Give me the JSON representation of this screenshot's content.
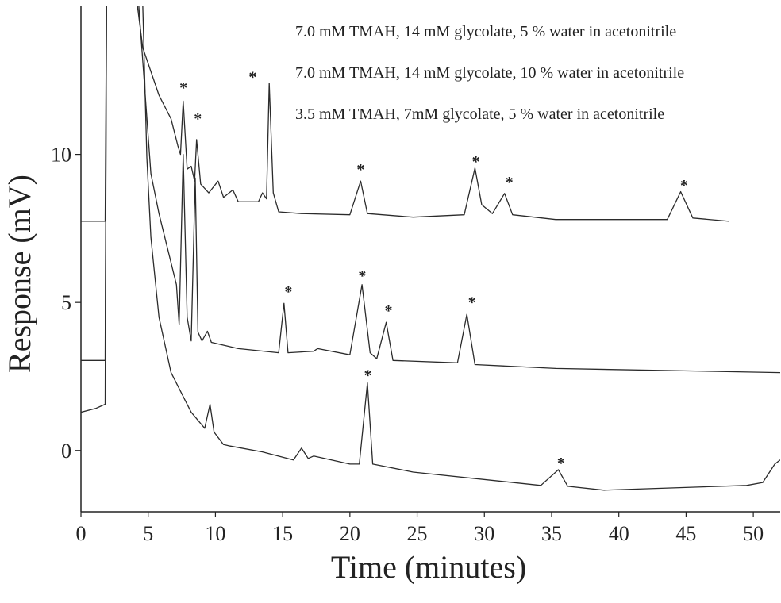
{
  "chart_data": {
    "type": "line",
    "xlabel": "Time (minutes)",
    "ylabel": "Response (mV)",
    "xlim": [
      0,
      52
    ],
    "ylim": [
      -2.07,
      15
    ],
    "xticks": [
      0,
      5,
      10,
      15,
      20,
      25,
      30,
      35,
      40,
      45,
      50
    ],
    "yticks": [
      0,
      5,
      10
    ],
    "legend": "upper right",
    "series": [
      {
        "name": "7.0 mM TMAH, 14 mM glycolate, 5 % water in acetonitrile",
        "color": "#2b2b2b",
        "x": [
          0,
          1.8,
          1.9,
          3.0,
          4.2,
          4.6,
          5.8,
          6.7,
          7.2,
          7.4,
          7.6,
          7.9,
          8.2,
          8.45,
          8.6,
          8.9,
          9.5,
          10.2,
          10.6,
          11.3,
          11.7,
          13.2,
          13.5,
          13.8,
          14.0,
          14.3,
          14.7,
          16.4,
          20.0,
          20.8,
          21.3,
          24.7,
          28.5,
          29.3,
          29.8,
          30.6,
          31.5,
          32.1,
          35.3,
          43.6,
          44.6,
          45.5,
          48.2
        ],
        "values": [
          7.74,
          7.74,
          15,
          null,
          15,
          13.6,
          12.0,
          11.2,
          10.3,
          10.0,
          11.8,
          9.5,
          9.6,
          9.1,
          10.5,
          9.0,
          8.7,
          9.1,
          8.55,
          8.8,
          8.4,
          8.4,
          8.7,
          8.5,
          12.4,
          8.7,
          8.06,
          8.0,
          7.96,
          9.1,
          8.0,
          7.88,
          7.96,
          9.54,
          8.3,
          8.0,
          8.68,
          7.96,
          7.8,
          7.8,
          8.74,
          7.85,
          7.74
        ]
      },
      {
        "name": "7.0 mM TMAH, 14 mM glycolate, 10 % water in acetonitrile",
        "color": "#2b2b2b",
        "x": [
          0,
          1.8,
          1.9,
          3.0,
          4.3,
          5.2,
          5.8,
          6.4,
          7.1,
          7.3,
          7.6,
          7.9,
          8.2,
          8.5,
          8.7,
          9.0,
          9.4,
          9.7,
          11.7,
          14.7,
          15.1,
          15.4,
          17.3,
          17.6,
          20.0,
          20.9,
          21.5,
          22.0,
          22.7,
          23.2,
          28.0,
          28.7,
          29.3,
          35.3,
          52
        ],
        "values": [
          3.04,
          3.04,
          15,
          null,
          15,
          9.35,
          8.0,
          6.9,
          5.6,
          4.25,
          10.0,
          4.5,
          3.7,
          9.2,
          4.0,
          3.7,
          4.03,
          3.65,
          3.44,
          3.3,
          4.97,
          3.3,
          3.35,
          3.44,
          3.23,
          5.6,
          3.3,
          3.1,
          4.33,
          3.04,
          2.96,
          4.6,
          2.9,
          2.77,
          2.63
        ]
      },
      {
        "name": "3.5 mM TMAH, 7mM glycolate, 5 % water in acetonitrile",
        "color": "#2b2b2b",
        "x": [
          0,
          1.1,
          1.8,
          1.9,
          3.0,
          4.6,
          4.9,
          5.2,
          5.8,
          6.7,
          8.2,
          9.2,
          9.6,
          9.9,
          10.6,
          11.1,
          13.5,
          15.8,
          16.4,
          16.9,
          17.3,
          20.0,
          20.7,
          21.3,
          21.7,
          24.7,
          34.2,
          35.5,
          36.2,
          38.9,
          49.5,
          50.7,
          51.6,
          52
        ],
        "values": [
          1.29,
          1.42,
          1.56,
          15,
          null,
          15,
          9.9,
          7.2,
          4.5,
          2.63,
          1.29,
          0.75,
          1.56,
          0.62,
          0.2,
          0.15,
          -0.05,
          -0.32,
          0.08,
          -0.27,
          -0.19,
          -0.46,
          -0.46,
          2.28,
          -0.46,
          -0.73,
          -1.18,
          -0.65,
          -1.21,
          -1.34,
          -1.18,
          -1.08,
          -0.46,
          -0.32
        ]
      }
    ],
    "annotations": [
      {
        "text": "*",
        "x": 7.62,
        "y": 12.3
      },
      {
        "text": "*",
        "x": 8.69,
        "y": 11.25
      },
      {
        "text": "*",
        "x": 12.77,
        "y": 12.66
      },
      {
        "text": "*",
        "x": 20.8,
        "y": 9.54
      },
      {
        "text": "*",
        "x": 29.37,
        "y": 9.8
      },
      {
        "text": "*",
        "x": 31.86,
        "y": 9.1
      },
      {
        "text": "*",
        "x": 44.85,
        "y": 9.0
      },
      {
        "text": "*",
        "x": 15.43,
        "y": 5.4
      },
      {
        "text": "*",
        "x": 20.92,
        "y": 5.94
      },
      {
        "text": "*",
        "x": 22.87,
        "y": 4.76
      },
      {
        "text": "*",
        "x": 29.08,
        "y": 5.05
      },
      {
        "text": "*",
        "x": 21.34,
        "y": 2.58
      },
      {
        "text": "*",
        "x": 35.7,
        "y": -0.38
      }
    ]
  }
}
